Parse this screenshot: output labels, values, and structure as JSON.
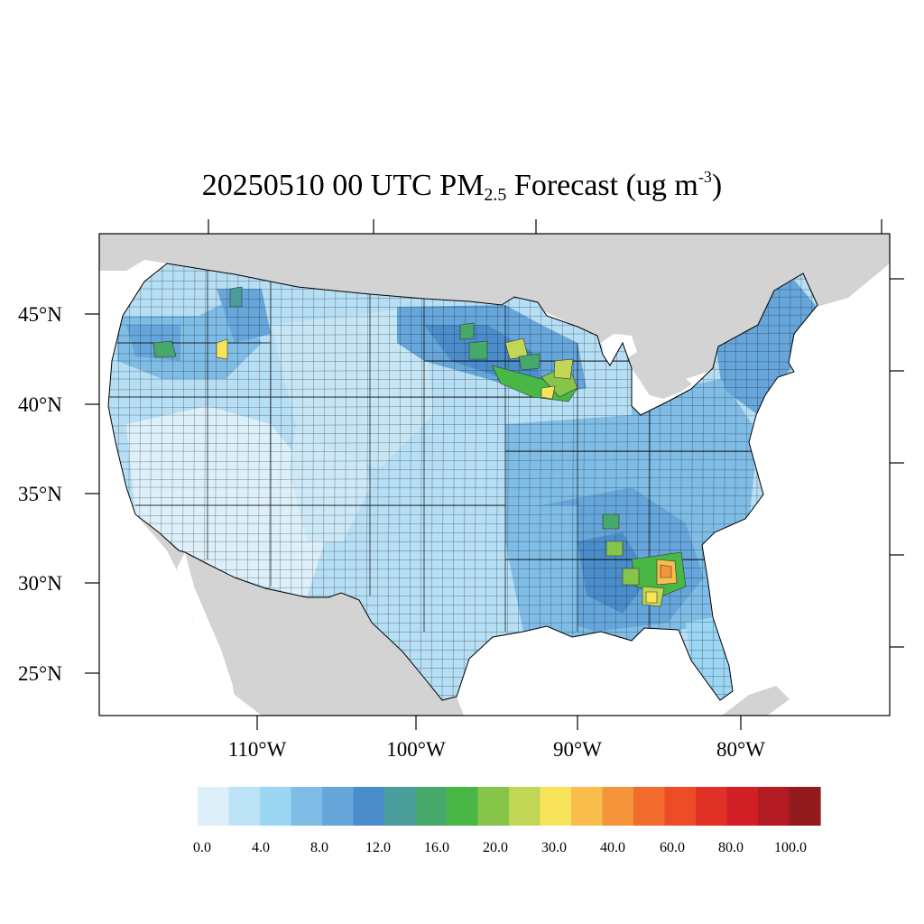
{
  "title": {
    "date_time": "20250510 00 UTC PM",
    "sub": "2.5",
    "rest": " Forecast (ug m",
    "sup": "-3",
    "close": ")"
  },
  "map": {
    "colors": {
      "land_outside": "#d3d3d3",
      "water": "#ffffff",
      "county_border": "#000000"
    },
    "lat_labels": [
      "45°N",
      "40°N",
      "35°N",
      "30°N",
      "25°N"
    ],
    "lon_labels": [
      "110°W",
      "100°W",
      "90°W",
      "80°W"
    ],
    "hotspots": [
      {
        "region": "Southeast (Georgia)",
        "level": 40.0
      },
      {
        "region": "Upper Midwest (Minnesota/Wisconsin)",
        "level": 30.0
      },
      {
        "region": "Idaho",
        "level": 30.0
      }
    ]
  },
  "colorbar": {
    "colors": [
      "#ddf0fa",
      "#bde3f7",
      "#9bd6f3",
      "#80bde6",
      "#66a6da",
      "#4b8dca",
      "#4a9d9b",
      "#47a86c",
      "#48b746",
      "#86c54a",
      "#c2d655",
      "#f7e45a",
      "#f8bd4a",
      "#f5953b",
      "#f26c2d",
      "#ec4d27",
      "#e03126",
      "#d02025",
      "#b11b21",
      "#931a1d"
    ],
    "labels": [
      "0.0",
      "4.0",
      "8.0",
      "12.0",
      "16.0",
      "20.0",
      "30.0",
      "40.0",
      "60.0",
      "80.0",
      "100.0"
    ]
  }
}
